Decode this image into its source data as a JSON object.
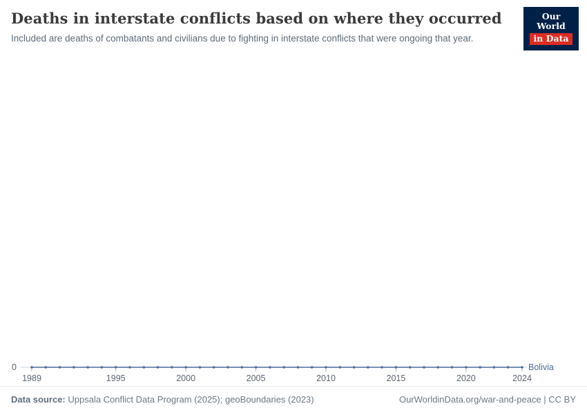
{
  "header": {
    "title": "Deaths in interstate conflicts based on where they occurred",
    "subtitle": "Included are deaths of combatants and civilians due to fighting in interstate conflicts that were ongoing that year.",
    "logo": {
      "line1": "Our World",
      "line2": "in Data"
    }
  },
  "chart_data": {
    "type": "line",
    "title": "Deaths in interstate conflicts based on where they occurred",
    "x": [
      1989,
      1990,
      1991,
      1992,
      1993,
      1994,
      1995,
      1996,
      1997,
      1998,
      1999,
      2000,
      2001,
      2002,
      2003,
      2004,
      2005,
      2006,
      2007,
      2008,
      2009,
      2010,
      2011,
      2012,
      2013,
      2014,
      2015,
      2016,
      2017,
      2018,
      2019,
      2020,
      2021,
      2022,
      2023,
      2024
    ],
    "series": [
      {
        "name": "Bolivia",
        "color": "#4c6a9c",
        "values": [
          0,
          0,
          0,
          0,
          0,
          0,
          0,
          0,
          0,
          0,
          0,
          0,
          0,
          0,
          0,
          0,
          0,
          0,
          0,
          0,
          0,
          0,
          0,
          0,
          0,
          0,
          0,
          0,
          0,
          0,
          0,
          0,
          0,
          0,
          0,
          0
        ]
      }
    ],
    "x_ticks": [
      1989,
      1995,
      2000,
      2005,
      2010,
      2015,
      2020,
      2024
    ],
    "y_ticks": [
      0
    ],
    "xlim": [
      1989,
      2024
    ],
    "ylim": [
      0,
      1
    ],
    "grid": false,
    "legend": "end-of-line-label",
    "colors": {
      "axis_line": "#ccd2d8",
      "tick_text": "#5b6470"
    }
  },
  "footer": {
    "datasource_label": "Data source:",
    "datasource_text": " Uppsala Conflict Data Program (2025); geoBoundaries (2023)",
    "credit": "OurWorldinData.org/war-and-peace | CC BY"
  }
}
